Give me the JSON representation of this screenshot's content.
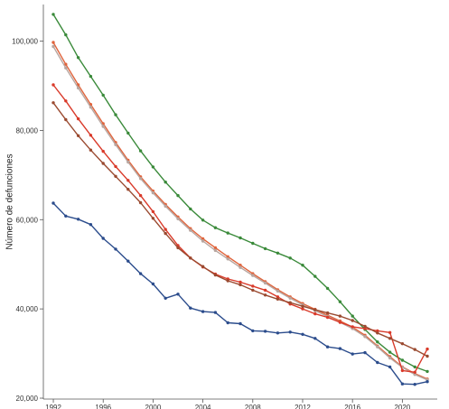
{
  "chart_data": {
    "type": "line",
    "title": "",
    "xlabel": "",
    "ylabel": "Número de defunciones",
    "xlim": [
      1991.2,
      2022.8
    ],
    "ylim": [
      19800,
      108200
    ],
    "x_ticks": [
      1992,
      1996,
      2000,
      2004,
      2008,
      2012,
      2016,
      2020
    ],
    "x_tick_labels": [
      "1992",
      "1996",
      "2000",
      "2004",
      "2008",
      "2012",
      "2016",
      "2020"
    ],
    "y_ticks": [
      20000,
      40000,
      60000,
      80000,
      100000
    ],
    "y_tick_labels": [
      "20,000",
      "40,000",
      "60,000",
      "80,000",
      "100,000"
    ],
    "grid": false,
    "legend": "none",
    "x": [
      1992,
      1993,
      1994,
      1995,
      1996,
      1997,
      1998,
      1999,
      2000,
      2001,
      2002,
      2003,
      2004,
      2005,
      2006,
      2007,
      2008,
      2009,
      2010,
      2011,
      2012,
      2013,
      2014,
      2015,
      2016,
      2017,
      2018,
      2019,
      2020,
      2021,
      2022
    ],
    "series": [
      {
        "color": "#3a8a3a",
        "values": [
          106000,
          101400,
          96300,
          92100,
          87900,
          83500,
          79400,
          75400,
          71800,
          68400,
          65400,
          62400,
          59900,
          58200,
          57000,
          55900,
          54700,
          53500,
          52500,
          51400,
          49800,
          47300,
          44600,
          41600,
          38400,
          35400,
          32600,
          30300,
          28500,
          27000,
          26000
        ]
      },
      {
        "color": "#e0643c",
        "values": [
          99700,
          94800,
          90200,
          85800,
          81500,
          77300,
          73300,
          69600,
          66400,
          63400,
          60600,
          58000,
          55700,
          53700,
          51700,
          49800,
          47900,
          46100,
          44300,
          42700,
          41200,
          39900,
          38600,
          37300,
          35900,
          34100,
          31700,
          29300,
          27000,
          25500,
          24300
        ]
      },
      {
        "color": "#b8a6a0",
        "values": [
          98800,
          94000,
          89500,
          85200,
          80900,
          76800,
          72900,
          69200,
          66000,
          63000,
          60200,
          57600,
          55200,
          53100,
          51200,
          49300,
          47500,
          45800,
          44000,
          42400,
          40900,
          39600,
          38300,
          37000,
          35600,
          33800,
          31500,
          29000,
          26900,
          25300,
          24100
        ]
      },
      {
        "color": "#d93a2a",
        "values": [
          90200,
          86600,
          82600,
          78900,
          75300,
          71900,
          68800,
          65400,
          61800,
          57800,
          54200,
          51400,
          49400,
          47800,
          46700,
          46000,
          45100,
          44200,
          42700,
          41100,
          40000,
          38900,
          38100,
          37000,
          36000,
          35600,
          35100,
          34700,
          26200,
          25800,
          31000
        ]
      },
      {
        "color": "#9a4a30",
        "values": [
          86200,
          82400,
          78800,
          75600,
          72600,
          69700,
          66800,
          63800,
          60300,
          56900,
          53700,
          51400,
          49500,
          47600,
          46300,
          45400,
          44200,
          43100,
          42200,
          41400,
          40600,
          39800,
          39100,
          38400,
          37400,
          36100,
          34600,
          33400,
          32200,
          30900,
          29400
        ]
      },
      {
        "color": "#2b4c8c",
        "values": [
          63700,
          60800,
          60100,
          58900,
          55800,
          53400,
          50700,
          47900,
          45600,
          42400,
          43300,
          40200,
          39400,
          39200,
          36900,
          36700,
          35100,
          35000,
          34600,
          34800,
          34300,
          33400,
          31500,
          31100,
          29900,
          30200,
          28000,
          27000,
          23200,
          23100,
          23700
        ]
      }
    ]
  }
}
